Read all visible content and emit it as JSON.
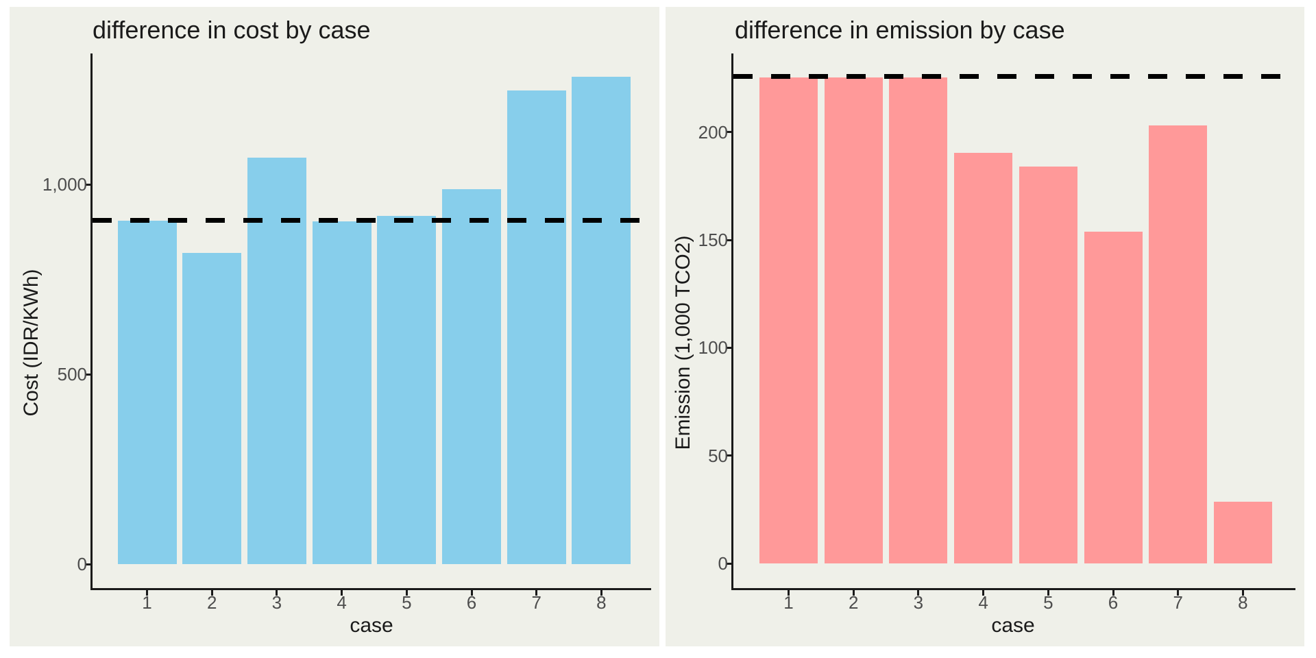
{
  "page": {
    "background": "#FFFFFF",
    "figure_background": "#EFF0E9",
    "axis_color": "#1A1A1A",
    "tick_label_color": "#4D4D4D"
  },
  "chart_data": [
    {
      "type": "bar",
      "title": "difference in cost by case",
      "xlabel": "case",
      "ylabel": "Cost (IDR/KWh)",
      "categories": [
        "1",
        "2",
        "3",
        "4",
        "5",
        "6",
        "7",
        "8"
      ],
      "values": [
        905,
        819,
        1070,
        902,
        917,
        987,
        1247,
        1283
      ],
      "bar_color": "#87CEEB",
      "yticks": [
        {
          "v": 0,
          "label": "0"
        },
        {
          "v": 500,
          "label": "500"
        },
        {
          "v": 1000,
          "label": "1,000"
        }
      ],
      "ylim": [
        0,
        1345
      ],
      "reference_line": {
        "value": 905,
        "style": "dashed",
        "color": "#000000"
      },
      "grid": false,
      "legend_position": "none"
    },
    {
      "type": "bar",
      "title": "difference in emission by case",
      "xlabel": "case",
      "ylabel": "Emission (1,000 TCO2)",
      "categories": [
        "1",
        "2",
        "3",
        "4",
        "5",
        "6",
        "7",
        "8"
      ],
      "values": [
        225.5,
        225.5,
        225.5,
        190.5,
        184,
        154,
        203,
        28.5
      ],
      "bar_color": "#FF9999",
      "yticks": [
        {
          "v": 0,
          "label": "0"
        },
        {
          "v": 50,
          "label": "50"
        },
        {
          "v": 100,
          "label": "100"
        },
        {
          "v": 150,
          "label": "150"
        },
        {
          "v": 200,
          "label": "200"
        }
      ],
      "ylim": [
        0,
        236.5
      ],
      "reference_line": {
        "value": 226,
        "style": "dashed",
        "color": "#000000"
      },
      "grid": false,
      "legend_position": "none"
    }
  ]
}
